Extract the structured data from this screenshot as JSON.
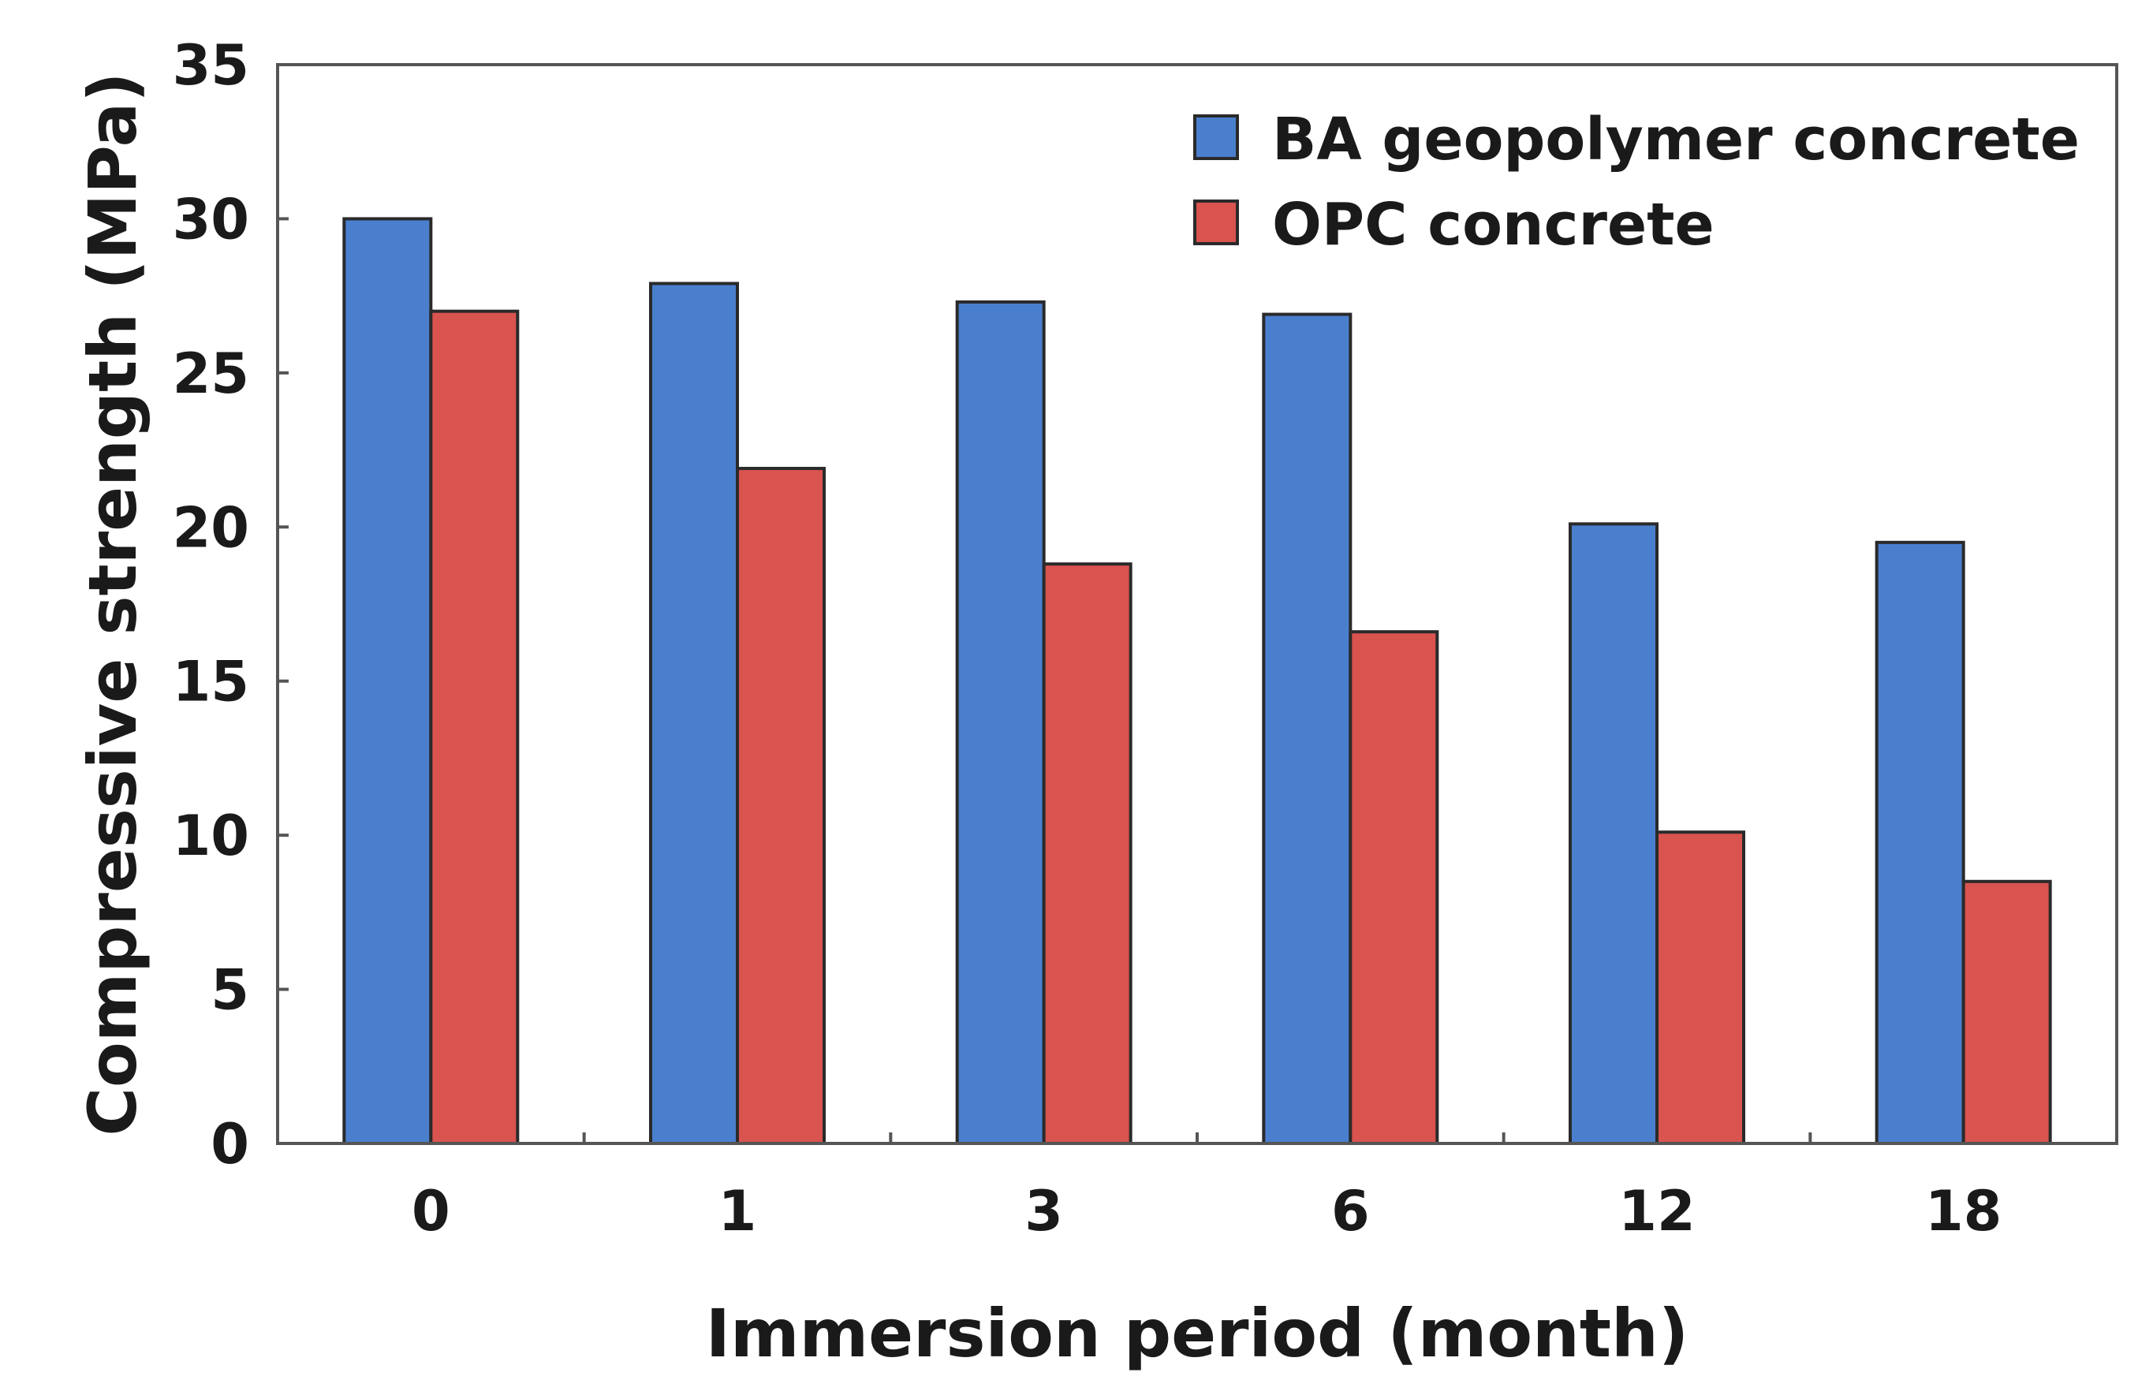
{
  "chart_data": {
    "type": "bar",
    "title": "",
    "xlabel": "Immersion period (month)",
    "ylabel": "Compressive strength (MPa)",
    "categories": [
      "0",
      "1",
      "3",
      "6",
      "12",
      "18"
    ],
    "series": [
      {
        "name": "BA geopolymer concrete",
        "color": "#4a7fce",
        "values": [
          30.0,
          27.9,
          27.3,
          26.9,
          20.1,
          19.5
        ]
      },
      {
        "name": "OPC concrete",
        "color": "#d9534f",
        "values": [
          27.0,
          21.9,
          18.8,
          16.6,
          10.1,
          8.5
        ]
      }
    ],
    "ylim": [
      0,
      35
    ],
    "yticks": [
      0,
      5,
      10,
      15,
      20,
      25,
      30,
      35
    ],
    "grid": false,
    "legend_position": "top-right"
  }
}
